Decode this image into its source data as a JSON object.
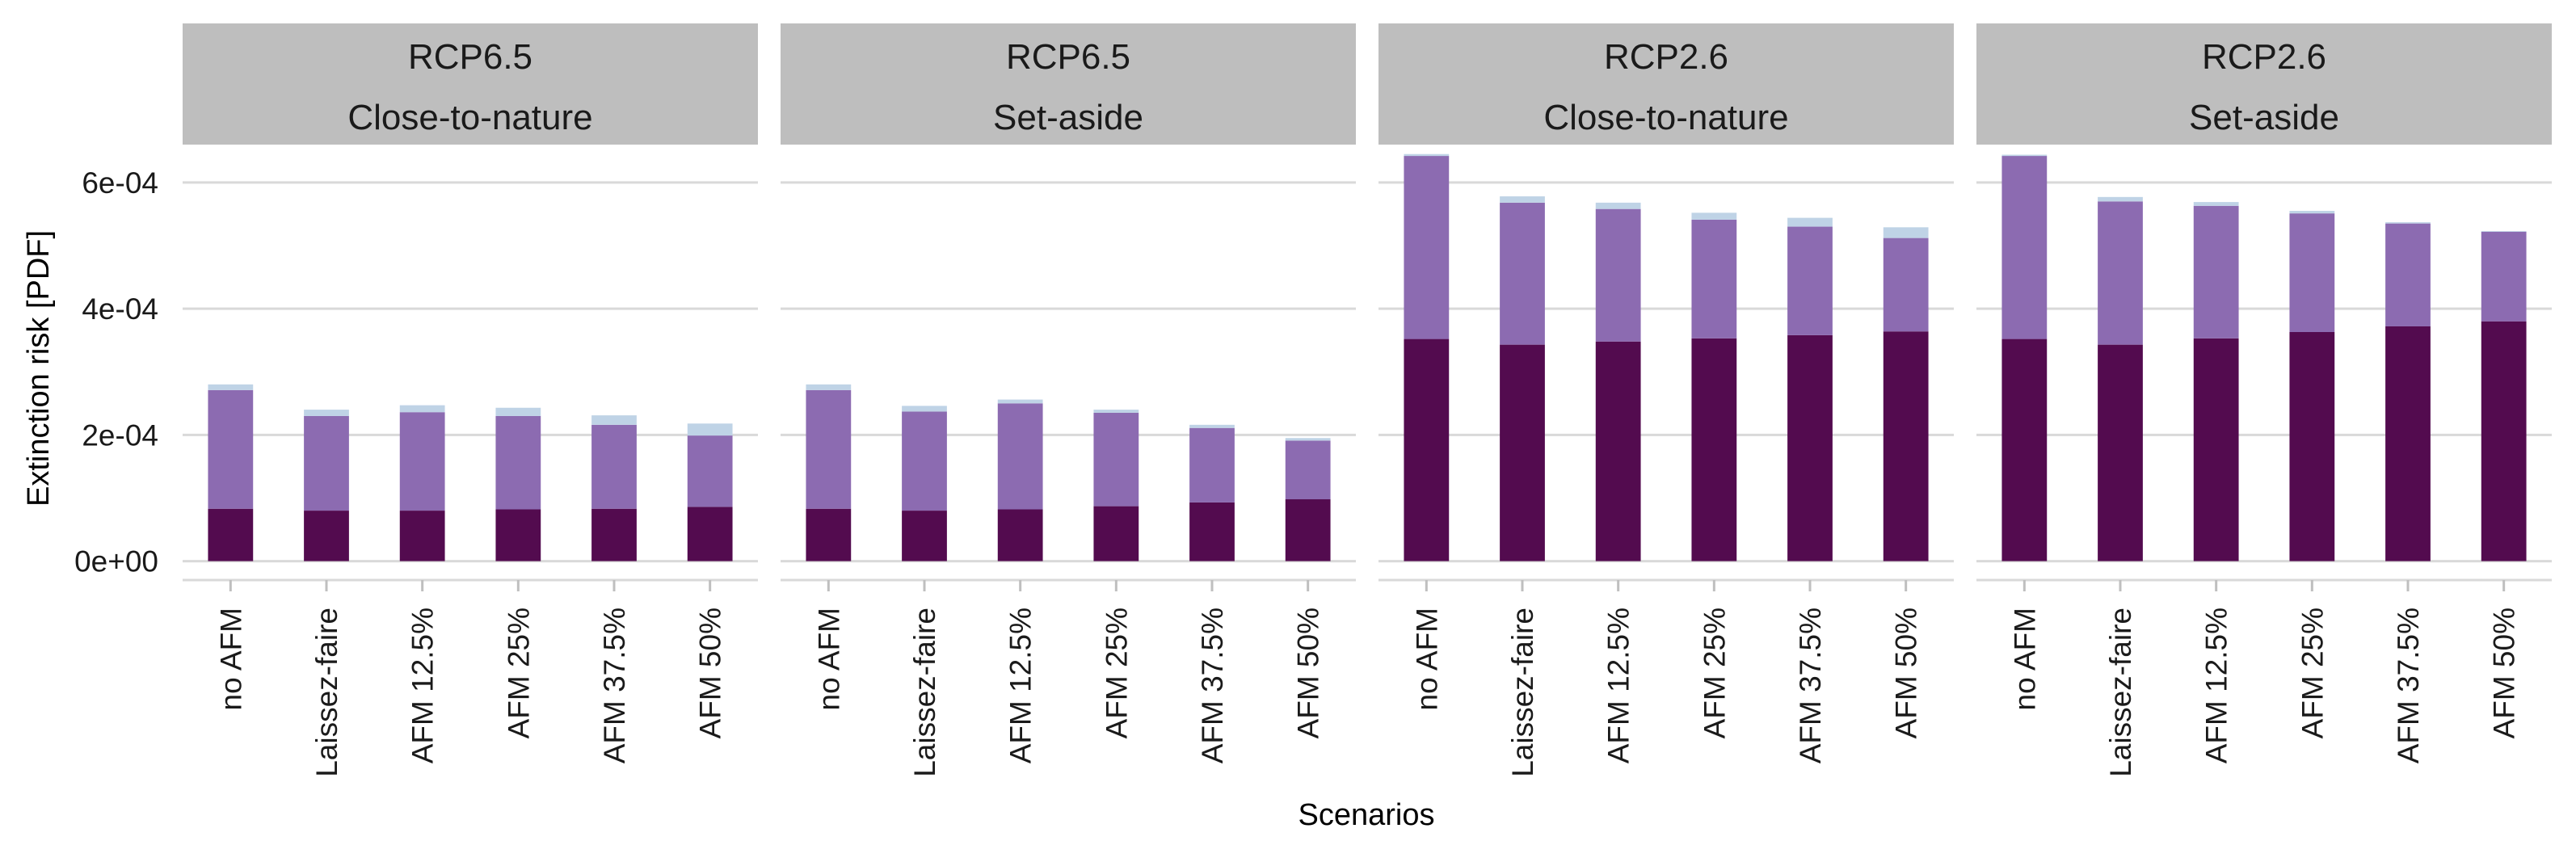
{
  "chart_data": {
    "type": "bar",
    "stacked": true,
    "xlabel": "Scenarios",
    "ylabel": "Extinction risk [PDF]",
    "ylim": [
      -3e-05,
      0.00066
    ],
    "yticks": [
      0,
      0.0002,
      0.0004,
      0.0006
    ],
    "ytick_labels": [
      "0e+00",
      "2e-04",
      "4e-04",
      "6e-04"
    ],
    "grid": true,
    "categories": [
      "no AFM",
      "Laissez-faire",
      "AFM 12.5%",
      "AFM 25%",
      "AFM 37.5%",
      "AFM 50%"
    ],
    "colors": [
      "#530b4f",
      "#8c6bb1",
      "#bfd3e6"
    ],
    "panel_header_color": "#bebebe",
    "gridline_color": "#d9d9d9",
    "panels": [
      {
        "title_line1": "RCP6.5",
        "title_line2": "Close-to-nature",
        "series": [
          {
            "values": [
              8.3e-05,
              8e-05,
              8e-05,
              8.2e-05,
              8.3e-05,
              8.6e-05
            ]
          },
          {
            "values": [
              0.000188,
              0.00015,
              0.000156,
              0.000148,
              0.000133,
              0.000113
            ]
          },
          {
            "values": [
              9e-06,
              1e-05,
              1.1e-05,
              1.3e-05,
              1.5e-05,
              1.9e-05
            ]
          }
        ]
      },
      {
        "title_line1": "RCP6.5",
        "title_line2": "Set-aside",
        "series": [
          {
            "values": [
              8.3e-05,
              8e-05,
              8.2e-05,
              8.7e-05,
              9.3e-05,
              9.8e-05
            ]
          },
          {
            "values": [
              0.000188,
              0.000157,
              0.000168,
              0.000148,
              0.000118,
              9.3e-05
            ]
          },
          {
            "values": [
              9e-06,
              9e-06,
              6e-06,
              5e-06,
              5e-06,
              4e-06
            ]
          }
        ]
      },
      {
        "title_line1": "RCP2.6",
        "title_line2": "Close-to-nature",
        "series": [
          {
            "values": [
              0.000352,
              0.000343,
              0.000348,
              0.000353,
              0.000358,
              0.000364
            ]
          },
          {
            "values": [
              0.00029,
              0.000225,
              0.00021,
              0.000188,
              0.000172,
              0.000148
            ]
          },
          {
            "values": [
              3e-06,
              1e-05,
              1e-05,
              1.1e-05,
              1.4e-05,
              1.7e-05
            ]
          }
        ]
      },
      {
        "title_line1": "RCP2.6",
        "title_line2": "Set-aside",
        "series": [
          {
            "values": [
              0.000352,
              0.000343,
              0.000353,
              0.000363,
              0.000372,
              0.00038
            ]
          },
          {
            "values": [
              0.00029,
              0.000227,
              0.00021,
              0.000188,
              0.000163,
              0.000142
            ]
          },
          {
            "values": [
              2e-06,
              7e-06,
              6e-06,
              4e-06,
              2e-06,
              1e-06
            ]
          }
        ]
      }
    ]
  }
}
